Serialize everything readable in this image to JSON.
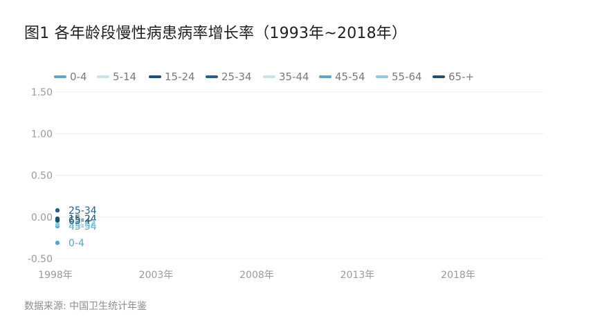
{
  "page": {
    "title": "图1 各年龄段慢性病患病率增长率（1993年~2018年）",
    "source": "数据来源: 中国卫生统计年鉴"
  },
  "colors": {
    "series": [
      "#5aa5c8",
      "#c7e3ea",
      "#1f4f6b",
      "#2c5f7f",
      "#c7e3ea",
      "#5aa5c8",
      "#8fc9da",
      "#1f4f6b"
    ],
    "grid": "#eeeeee",
    "tick": "#9a9a9a"
  },
  "chart_data": {
    "type": "line",
    "x": [
      "1998年"
    ],
    "xticks": [
      "1998年",
      "2003年",
      "2008年",
      "2013年",
      "2018年"
    ],
    "xlim": [
      1998,
      2023
    ],
    "ylim": [
      -0.5,
      1.5
    ],
    "yticks": [
      "-0.50",
      "0.00",
      "0.50",
      "1.00",
      "1.50"
    ],
    "ytick_values": [
      -0.5,
      0,
      0.5,
      1.0,
      1.5
    ],
    "grid": true,
    "legend_position": "top",
    "series": [
      {
        "name": "0-4",
        "values": [
          -0.31
        ]
      },
      {
        "name": "5-14",
        "values": [
          -0.06
        ]
      },
      {
        "name": "15-24",
        "values": [
          -0.02
        ]
      },
      {
        "name": "25-34",
        "values": [
          0.08
        ]
      },
      {
        "name": "35-44",
        "values": [
          -0.08
        ]
      },
      {
        "name": "45-54",
        "values": [
          -0.11
        ]
      },
      {
        "name": "55-64",
        "values": [
          -0.09
        ]
      },
      {
        "name": "65-+",
        "values": [
          -0.04
        ]
      }
    ]
  }
}
